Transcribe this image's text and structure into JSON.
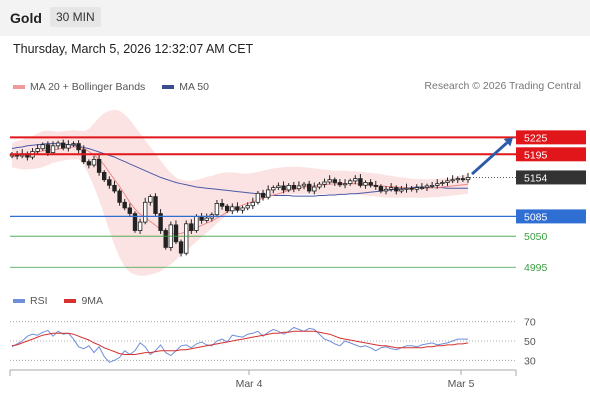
{
  "header": {
    "instrument": "Gold",
    "interval": "30 MIN"
  },
  "datetime": "Thursday, March 5, 2026 12:32:07 AM CET",
  "legend": {
    "ma20_label": "MA 20 + Bollinger Bands",
    "ma50_label": "MA 50",
    "credit": "Research © 2026 Trading Central"
  },
  "rsi_legend": {
    "rsi_label": "RSI",
    "ma_label": "9MA"
  },
  "colors": {
    "ma20": "#e88",
    "bollinger_fill": "#fcdede",
    "ma50": "#4a5aa8",
    "bullish": "#ffffff",
    "bearish": "#222222",
    "resistance": "#e0161b",
    "current": "#333333",
    "pivot": "#2f6fd4",
    "support": "#3aa040",
    "rsi": "#6f8fd8",
    "rsi_ma": "#d63030",
    "arrow": "#2d5ba8"
  },
  "chart_data": [
    {
      "type": "candlestick",
      "title": "",
      "y_range": [
        4960,
        5300
      ],
      "x_tick_labels": [
        "Mar 4",
        "Mar 5"
      ],
      "levels": [
        {
          "value": 5225,
          "label": "5225",
          "kind": "resistance"
        },
        {
          "value": 5195,
          "label": "5195",
          "kind": "resistance"
        },
        {
          "value": 5154,
          "label": "5154",
          "kind": "current"
        },
        {
          "value": 5085,
          "label": "5085",
          "kind": "pivot"
        },
        {
          "value": 5050,
          "label": "5050",
          "kind": "support"
        },
        {
          "value": 4995,
          "label": "4995",
          "kind": "support"
        }
      ],
      "forecast_arrow": {
        "from": 5160,
        "to": 5225
      },
      "closes": [
        5195,
        5192,
        5196,
        5190,
        5200,
        5205,
        5212,
        5198,
        5210,
        5215,
        5206,
        5212,
        5214,
        5203,
        5182,
        5176,
        5186,
        5163,
        5150,
        5140,
        5130,
        5110,
        5100,
        5090,
        5060,
        5075,
        5110,
        5120,
        5090,
        5060,
        5030,
        5070,
        5040,
        5020,
        5072,
        5060,
        5085,
        5078,
        5082,
        5088,
        5108,
        5103,
        5095,
        5102,
        5096,
        5100,
        5104,
        5110,
        5126,
        5119,
        5132,
        5136,
        5139,
        5132,
        5140,
        5134,
        5139,
        5142,
        5130,
        5137,
        5142,
        5146,
        5150,
        5145,
        5141,
        5143,
        5148,
        5152,
        5140,
        5145,
        5140,
        5138,
        5130,
        5133,
        5136,
        5130,
        5133,
        5135,
        5133,
        5136,
        5136,
        5139,
        5140,
        5143,
        5145,
        5148,
        5150,
        5152,
        5150,
        5154
      ],
      "ma20": [
        5190,
        5192,
        5194,
        5195,
        5197,
        5199,
        5201,
        5202,
        5203,
        5204,
        5206,
        5207,
        5208,
        5208,
        5205,
        5200,
        5194,
        5186,
        5176,
        5163,
        5150,
        5138,
        5124,
        5110,
        5098,
        5089,
        5083,
        5076,
        5069,
        5062,
        5057,
        5055,
        5054,
        5055,
        5058,
        5061,
        5065,
        5069,
        5073,
        5077,
        5082,
        5087,
        5093,
        5097,
        5101,
        5105,
        5108,
        5111,
        5114,
        5117,
        5120,
        5123,
        5125,
        5128,
        5131,
        5133,
        5135,
        5137,
        5138,
        5139,
        5140,
        5141,
        5142,
        5143,
        5143,
        5143,
        5143,
        5143,
        5142,
        5142,
        5141,
        5140,
        5139,
        5138,
        5138,
        5137,
        5136,
        5136,
        5135,
        5135,
        5135,
        5135,
        5136,
        5136,
        5137,
        5138,
        5139,
        5140,
        5141,
        5142
      ],
      "bb_upper": [
        5215,
        5218,
        5221,
        5224,
        5227,
        5232,
        5236,
        5237,
        5236,
        5235,
        5236,
        5237,
        5238,
        5237,
        5236,
        5240,
        5250,
        5260,
        5268,
        5272,
        5274,
        5272,
        5266,
        5256,
        5244,
        5232,
        5220,
        5208,
        5196,
        5184,
        5172,
        5162,
        5154,
        5150,
        5148,
        5148,
        5150,
        5152,
        5155,
        5157,
        5160,
        5162,
        5163,
        5163,
        5162,
        5161,
        5161,
        5162,
        5164,
        5166,
        5168,
        5170,
        5171,
        5172,
        5173,
        5173,
        5173,
        5172,
        5171,
        5170,
        5169,
        5168,
        5167,
        5166,
        5166,
        5166,
        5165,
        5165,
        5164,
        5163,
        5162,
        5161,
        5160,
        5158,
        5157,
        5155,
        5154,
        5153,
        5152,
        5151,
        5151,
        5151,
        5151,
        5151,
        5152,
        5153,
        5154,
        5156,
        5158,
        5160
      ],
      "bb_lower": [
        5172,
        5170,
        5168,
        5168,
        5169,
        5170,
        5172,
        5176,
        5180,
        5182,
        5184,
        5185,
        5186,
        5186,
        5176,
        5158,
        5138,
        5114,
        5088,
        5060,
        5034,
        5012,
        4996,
        4986,
        4982,
        4980,
        4980,
        4982,
        4984,
        4988,
        4994,
        5000,
        5008,
        5016,
        5024,
        5032,
        5040,
        5048,
        5056,
        5064,
        5072,
        5080,
        5088,
        5094,
        5100,
        5104,
        5108,
        5112,
        5115,
        5117,
        5119,
        5121,
        5122,
        5123,
        5124,
        5124,
        5124,
        5124,
        5124,
        5124,
        5124,
        5124,
        5124,
        5124,
        5124,
        5124,
        5124,
        5124,
        5123,
        5122,
        5121,
        5120,
        5119,
        5118,
        5118,
        5118,
        5118,
        5118,
        5118,
        5118,
        5118,
        5118,
        5119,
        5119,
        5120,
        5121,
        5122,
        5123,
        5124,
        5125
      ],
      "ma50": [
        5205,
        5207,
        5208,
        5210,
        5211,
        5212,
        5213,
        5214,
        5214,
        5214,
        5213,
        5212,
        5211,
        5209,
        5207,
        5205,
        5202,
        5199,
        5196,
        5193,
        5190,
        5186,
        5182,
        5178,
        5174,
        5170,
        5166,
        5162,
        5158,
        5154,
        5151,
        5148,
        5145,
        5143,
        5141,
        5139,
        5137,
        5136,
        5135,
        5134,
        5133,
        5132,
        5131,
        5130,
        5129,
        5128,
        5127,
        5126,
        5125,
        5124,
        5123,
        5122,
        5122,
        5122,
        5122,
        5121,
        5121,
        5121,
        5121,
        5121,
        5122,
        5122,
        5123,
        5123,
        5124,
        5124,
        5125,
        5125,
        5126,
        5127,
        5128,
        5129,
        5130,
        5131,
        5132,
        5133,
        5134,
        5135,
        5136,
        5137,
        5137,
        5137,
        5136,
        5136,
        5136,
        5135,
        5135,
        5135,
        5135,
        5135
      ]
    },
    {
      "type": "line",
      "title": "RSI",
      "y_range": [
        20,
        80
      ],
      "y_ticks": [
        70,
        50,
        30
      ],
      "series": [
        {
          "name": "RSI",
          "values": [
            44,
            47,
            50,
            55,
            57,
            56,
            59,
            61,
            55,
            60,
            57,
            58,
            52,
            44,
            42,
            45,
            38,
            44,
            34,
            28,
            30,
            33,
            40,
            36,
            40,
            48,
            44,
            36,
            40,
            46,
            38,
            35,
            40,
            45,
            46,
            43,
            47,
            49,
            46,
            45,
            50,
            52,
            49,
            56,
            55,
            54,
            57,
            58,
            60,
            55,
            59,
            62,
            60,
            57,
            60,
            64,
            62,
            60,
            63,
            62,
            57,
            52,
            50,
            47,
            45,
            50,
            48,
            46,
            44,
            45,
            43,
            40,
            43,
            44,
            42,
            41,
            43,
            45,
            45,
            44,
            46,
            47,
            48,
            46,
            47,
            48,
            50,
            52,
            52,
            52
          ]
        },
        {
          "name": "9MA",
          "values": [
            45,
            46,
            48,
            50,
            52,
            54,
            56,
            57,
            58,
            58,
            58,
            58,
            57,
            55,
            53,
            51,
            48,
            46,
            43,
            41,
            39,
            37,
            36,
            36,
            36,
            37,
            38,
            38,
            39,
            40,
            40,
            40,
            40,
            41,
            41,
            42,
            43,
            44,
            45,
            46,
            47,
            48,
            49,
            50,
            51,
            52,
            53,
            54,
            55,
            56,
            57,
            58,
            58,
            59,
            59,
            60,
            60,
            60,
            60,
            60,
            59,
            58,
            57,
            55,
            53,
            52,
            51,
            50,
            49,
            48,
            47,
            46,
            45,
            45,
            44,
            43,
            43,
            43,
            43,
            43,
            43,
            44,
            44,
            45,
            45,
            46,
            46,
            47,
            47,
            48
          ]
        }
      ]
    }
  ]
}
